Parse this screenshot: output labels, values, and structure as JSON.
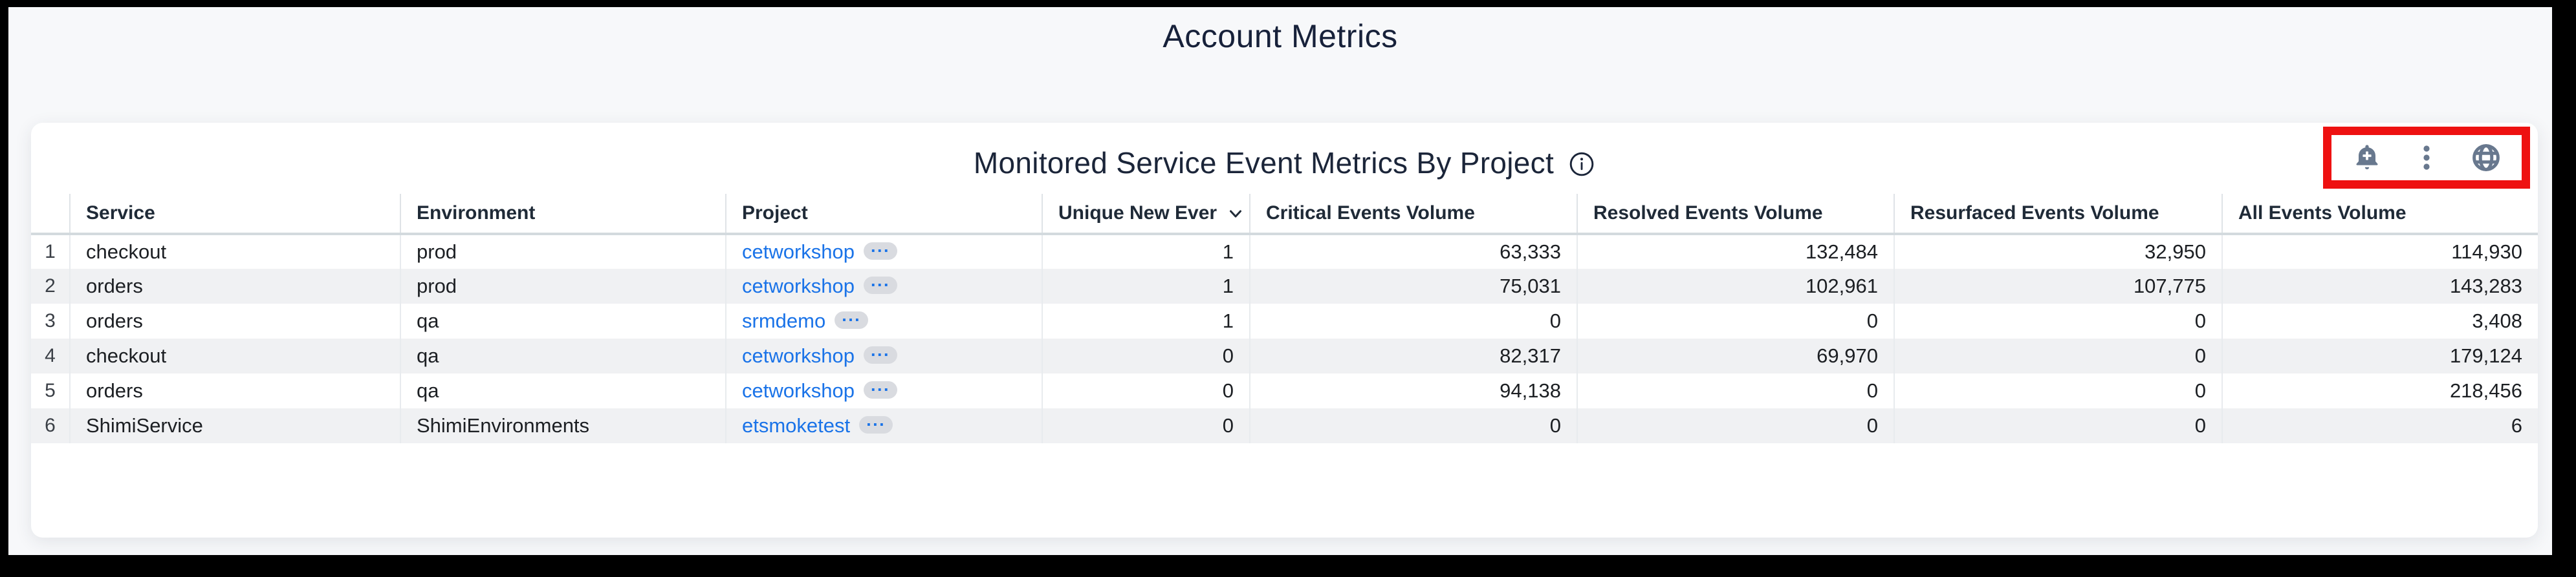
{
  "page": {
    "title": "Account Metrics"
  },
  "widget": {
    "title": "Monitored Service Event Metrics By Project",
    "toolbar_icons": [
      "bell-plus-icon",
      "kebab-menu-icon",
      "globe-icon"
    ],
    "highlight_color": "#ee1111",
    "icon_color": "#68788e",
    "link_color": "#1a73e8"
  },
  "table": {
    "project_badge": "···",
    "columns": [
      {
        "key": "num",
        "label": ""
      },
      {
        "key": "service",
        "label": "Service"
      },
      {
        "key": "environment",
        "label": "Environment"
      },
      {
        "key": "project",
        "label": "Project"
      },
      {
        "key": "unique",
        "label": "Unique New Ever",
        "sorted": "desc"
      },
      {
        "key": "critical",
        "label": "Critical Events Volume"
      },
      {
        "key": "resolved",
        "label": "Resolved Events Volume"
      },
      {
        "key": "resurfaced",
        "label": "Resurfaced Events Volume"
      },
      {
        "key": "all",
        "label": "All Events Volume"
      }
    ],
    "rows": [
      {
        "num": "1",
        "service": "checkout",
        "environment": "prod",
        "project": "cetworkshop",
        "unique": "1",
        "critical": "63,333",
        "resolved": "132,484",
        "resurfaced": "32,950",
        "all": "114,930"
      },
      {
        "num": "2",
        "service": "orders",
        "environment": "prod",
        "project": "cetworkshop",
        "unique": "1",
        "critical": "75,031",
        "resolved": "102,961",
        "resurfaced": "107,775",
        "all": "143,283"
      },
      {
        "num": "3",
        "service": "orders",
        "environment": "qa",
        "project": "srmdemo",
        "unique": "1",
        "critical": "0",
        "resolved": "0",
        "resurfaced": "0",
        "all": "3,408"
      },
      {
        "num": "4",
        "service": "checkout",
        "environment": "qa",
        "project": "cetworkshop",
        "unique": "0",
        "critical": "82,317",
        "resolved": "69,970",
        "resurfaced": "0",
        "all": "179,124"
      },
      {
        "num": "5",
        "service": "orders",
        "environment": "qa",
        "project": "cetworkshop",
        "unique": "0",
        "critical": "94,138",
        "resolved": "0",
        "resurfaced": "0",
        "all": "218,456"
      },
      {
        "num": "6",
        "service": "ShimiService",
        "environment": "ShimiEnvironments",
        "project": "etsmoketest",
        "unique": "0",
        "critical": "0",
        "resolved": "0",
        "resurfaced": "0",
        "all": "6"
      }
    ]
  }
}
